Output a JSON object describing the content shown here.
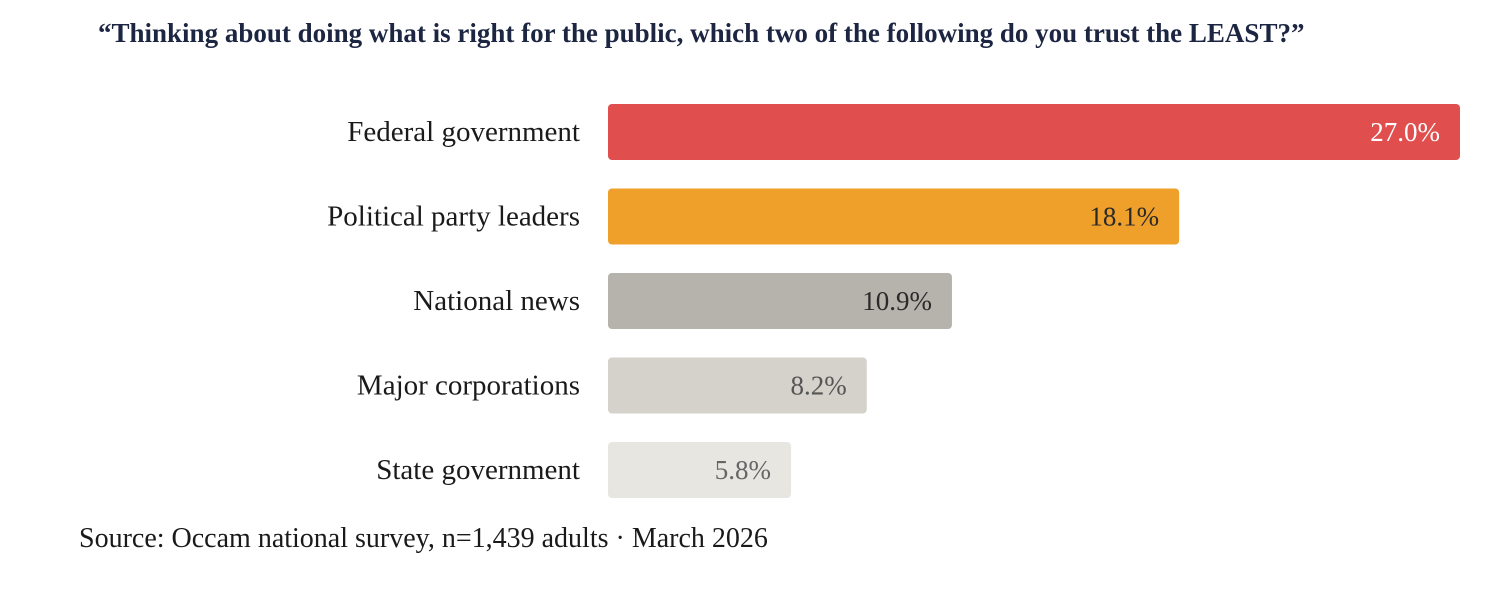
{
  "chart_data": {
    "type": "bar",
    "orientation": "horizontal",
    "title": "“Thinking about doing what is right for the public, which two of the following do you trust the LEAST?”",
    "categories": [
      "Federal government",
      "Political party leaders",
      "National news",
      "Major corporations",
      "State government"
    ],
    "values": [
      27.0,
      18.1,
      10.9,
      8.2,
      5.8
    ],
    "value_labels": [
      "27.0%",
      "18.1%",
      "10.9%",
      "8.2%",
      "5.8%"
    ],
    "colors": [
      "#e04e4e",
      "#eea02a",
      "#b6b2ac",
      "#d5d2cb",
      "#e8e6e1"
    ],
    "value_label_colors": [
      "#ffffff",
      "#2a2a2a",
      "#2a2a2a",
      "#555555",
      "#666666"
    ],
    "xlabel": "",
    "ylabel": "",
    "grid": false,
    "legend": "none",
    "source": "Source: Occam national survey, n=1,439 adults · March 2026"
  }
}
